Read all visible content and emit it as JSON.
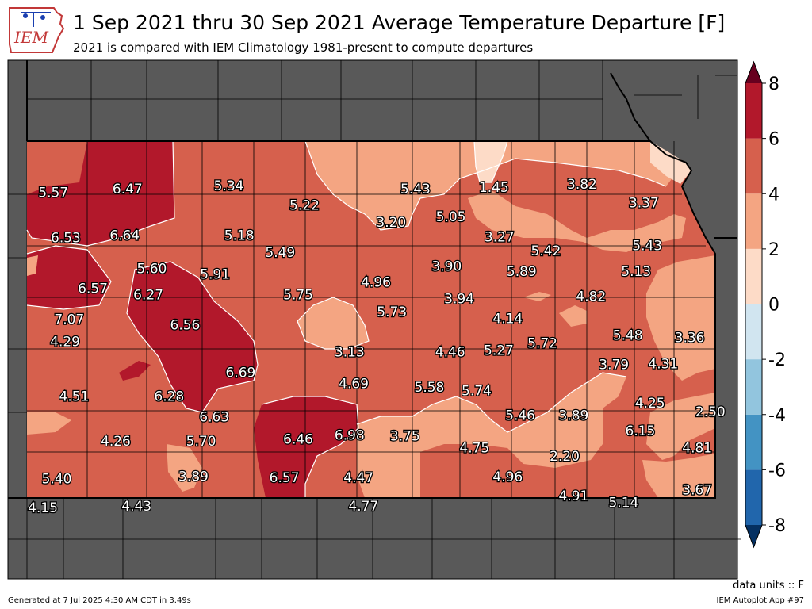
{
  "header": {
    "title": "1 Sep 2021 thru 30 Sep 2021 Average Temperature Departure [F]",
    "subtitle": "2021 is compared with IEM Climatology 1981-present to compute departures",
    "logo_text": "IEM"
  },
  "footer": {
    "units": "data units :: F",
    "generated": "Generated at 7 Jul 2025 4:30 AM CDT in 3.49s",
    "app": "IEM Autoplot App #97"
  },
  "colors": {
    "outside_map": "#595959",
    "county_lines": "#000000",
    "bins": [
      {
        "min": -8,
        "max": -6,
        "color": "#2166ac"
      },
      {
        "min": -6,
        "max": -4,
        "color": "#4393c3"
      },
      {
        "min": -4,
        "max": -2,
        "color": "#92c5de"
      },
      {
        "min": -2,
        "max": 0,
        "color": "#d1e5f0"
      },
      {
        "min": 0,
        "max": 2,
        "color": "#fddbc7"
      },
      {
        "min": 2,
        "max": 4,
        "color": "#f4a582"
      },
      {
        "min": 4,
        "max": 6,
        "color": "#d6604d"
      },
      {
        "min": 6,
        "max": 8,
        "color": "#b2182b"
      }
    ],
    "under": "#053061",
    "over": "#67001f"
  },
  "colorbar": {
    "ticks": [
      "8",
      "6",
      "4",
      "2",
      "0",
      "-2",
      "-4",
      "-6",
      "-8"
    ]
  },
  "stations": [
    {
      "value": 5.57,
      "gx": 0.03,
      "gy": 0.08
    },
    {
      "value": 6.47,
      "gx": 0.137,
      "gy": 0.07
    },
    {
      "value": 5.34,
      "gx": 0.283,
      "gy": 0.06
    },
    {
      "value": 5.22,
      "gx": 0.392,
      "gy": 0.117
    },
    {
      "value": 5.43,
      "gx": 0.552,
      "gy": 0.07
    },
    {
      "value": 1.45,
      "gx": 0.665,
      "gy": 0.065
    },
    {
      "value": 3.82,
      "gx": 0.792,
      "gy": 0.055
    },
    {
      "value": 3.37,
      "gx": 0.881,
      "gy": 0.11
    },
    {
      "value": 6.53,
      "gx": 0.048,
      "gy": 0.212
    },
    {
      "value": 6.64,
      "gx": 0.133,
      "gy": 0.205
    },
    {
      "value": 5.18,
      "gx": 0.298,
      "gy": 0.205
    },
    {
      "value": 3.2,
      "gx": 0.517,
      "gy": 0.167
    },
    {
      "value": 5.05,
      "gx": 0.603,
      "gy": 0.15
    },
    {
      "value": 3.27,
      "gx": 0.673,
      "gy": 0.21
    },
    {
      "value": 5.49,
      "gx": 0.357,
      "gy": 0.255
    },
    {
      "value": 5.42,
      "gx": 0.74,
      "gy": 0.25
    },
    {
      "value": 5.43,
      "gx": 0.886,
      "gy": 0.235
    },
    {
      "value": 5.6,
      "gx": 0.172,
      "gy": 0.302
    },
    {
      "value": 5.91,
      "gx": 0.263,
      "gy": 0.318
    },
    {
      "value": 3.9,
      "gx": 0.597,
      "gy": 0.295
    },
    {
      "value": 5.89,
      "gx": 0.705,
      "gy": 0.31
    },
    {
      "value": 5.13,
      "gx": 0.87,
      "gy": 0.31
    },
    {
      "value": 6.57,
      "gx": 0.087,
      "gy": 0.36
    },
    {
      "value": 6.27,
      "gx": 0.167,
      "gy": 0.378
    },
    {
      "value": 4.96,
      "gx": 0.495,
      "gy": 0.342
    },
    {
      "value": 5.75,
      "gx": 0.383,
      "gy": 0.378
    },
    {
      "value": 3.94,
      "gx": 0.615,
      "gy": 0.39
    },
    {
      "value": 4.82,
      "gx": 0.805,
      "gy": 0.383
    },
    {
      "value": 7.07,
      "gx": 0.053,
      "gy": 0.45
    },
    {
      "value": 6.56,
      "gx": 0.22,
      "gy": 0.467
    },
    {
      "value": 5.73,
      "gx": 0.518,
      "gy": 0.428
    },
    {
      "value": 4.14,
      "gx": 0.685,
      "gy": 0.448
    },
    {
      "value": 4.29,
      "gx": 0.047,
      "gy": 0.515
    },
    {
      "value": 3.13,
      "gx": 0.457,
      "gy": 0.545
    },
    {
      "value": 4.46,
      "gx": 0.602,
      "gy": 0.545
    },
    {
      "value": 5.27,
      "gx": 0.672,
      "gy": 0.54
    },
    {
      "value": 5.72,
      "gx": 0.735,
      "gy": 0.52
    },
    {
      "value": 5.48,
      "gx": 0.858,
      "gy": 0.497
    },
    {
      "value": 3.36,
      "gx": 0.947,
      "gy": 0.503
    },
    {
      "value": 6.69,
      "gx": 0.3,
      "gy": 0.605
    },
    {
      "value": 3.79,
      "gx": 0.838,
      "gy": 0.582
    },
    {
      "value": 4.31,
      "gx": 0.909,
      "gy": 0.58
    },
    {
      "value": 4.69,
      "gx": 0.463,
      "gy": 0.638
    },
    {
      "value": 4.51,
      "gx": 0.06,
      "gy": 0.675
    },
    {
      "value": 6.28,
      "gx": 0.197,
      "gy": 0.675
    },
    {
      "value": 5.58,
      "gx": 0.572,
      "gy": 0.648
    },
    {
      "value": 5.74,
      "gx": 0.64,
      "gy": 0.658
    },
    {
      "value": 4.25,
      "gx": 0.89,
      "gy": 0.695
    },
    {
      "value": 6.63,
      "gx": 0.262,
      "gy": 0.735
    },
    {
      "value": 5.46,
      "gx": 0.703,
      "gy": 0.73
    },
    {
      "value": 3.89,
      "gx": 0.78,
      "gy": 0.73
    },
    {
      "value": 2.5,
      "gx": 0.977,
      "gy": 0.72
    },
    {
      "value": 6.15,
      "gx": 0.876,
      "gy": 0.775
    },
    {
      "value": 4.26,
      "gx": 0.12,
      "gy": 0.805
    },
    {
      "value": 5.7,
      "gx": 0.243,
      "gy": 0.805
    },
    {
      "value": 6.46,
      "gx": 0.383,
      "gy": 0.8
    },
    {
      "value": 6.98,
      "gx": 0.457,
      "gy": 0.788
    },
    {
      "value": 3.75,
      "gx": 0.537,
      "gy": 0.79
    },
    {
      "value": 4.75,
      "gx": 0.637,
      "gy": 0.825
    },
    {
      "value": 2.2,
      "gx": 0.767,
      "gy": 0.85
    },
    {
      "value": 4.81,
      "gx": 0.958,
      "gy": 0.825
    },
    {
      "value": 5.4,
      "gx": 0.035,
      "gy": 0.915
    },
    {
      "value": 3.89,
      "gx": 0.232,
      "gy": 0.908
    },
    {
      "value": 6.57,
      "gx": 0.363,
      "gy": 0.912
    },
    {
      "value": 4.47,
      "gx": 0.47,
      "gy": 0.912
    },
    {
      "value": 4.96,
      "gx": 0.685,
      "gy": 0.91
    },
    {
      "value": 4.91,
      "gx": 0.78,
      "gy": 0.965
    },
    {
      "value": 5.14,
      "gx": 0.852,
      "gy": 0.985
    },
    {
      "value": 3.67,
      "gx": 0.958,
      "gy": 0.948
    },
    {
      "value": 4.15,
      "gx": 0.015,
      "gy": 1.0
    },
    {
      "value": 4.43,
      "gx": 0.15,
      "gy": 0.995
    },
    {
      "value": 4.77,
      "gx": 0.477,
      "gy": 0.995
    }
  ]
}
